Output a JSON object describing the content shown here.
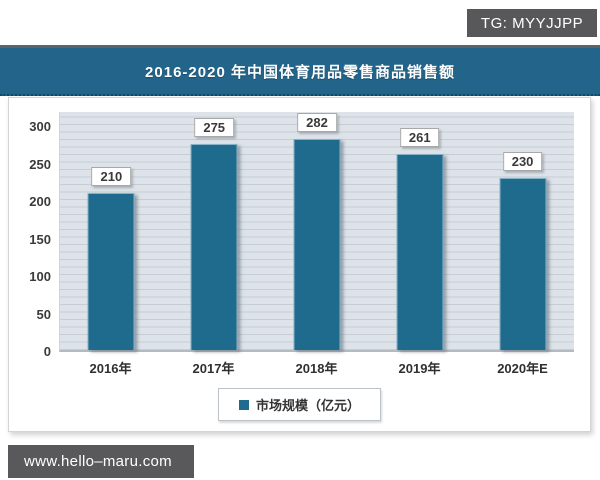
{
  "badge": {
    "label": "TG: MYYJJPP"
  },
  "header": {
    "title": "2016-2020 年中国体育用品零售商品销售额"
  },
  "chart_data": {
    "type": "bar",
    "title": "2016-2020 年中国体育用品零售商品销售额",
    "categories": [
      "2016年",
      "2017年",
      "2018年",
      "2019年",
      "2020年E"
    ],
    "values": [
      210,
      275,
      282,
      261,
      230
    ],
    "series_name": "市场规模（亿元）",
    "xlabel": "",
    "ylabel": "",
    "ylim": [
      0,
      320
    ],
    "y_ticks": [
      0,
      50,
      100,
      150,
      200,
      250,
      300
    ],
    "grid": "horizontal-minor-every-10",
    "data_labels": true,
    "legend_position": "bottom-center",
    "bar_color": "#1f6b8d",
    "plot_background": "#dde3e9"
  },
  "legend": {
    "label": "市场规模（亿元）",
    "marker_color": "#1f6b8d"
  },
  "footer": {
    "site": "www.hello–maru.com"
  },
  "colors": {
    "title_band": "#23658a",
    "bar": "#1f6b8d",
    "badge_background": "#58585a",
    "panel_background": "#ffffff"
  }
}
